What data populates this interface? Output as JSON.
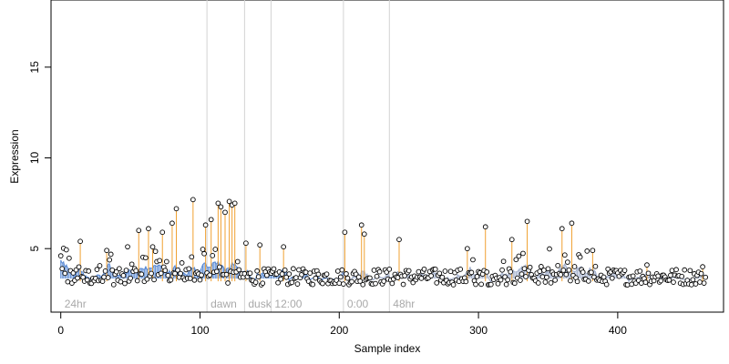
{
  "chart_data": {
    "type": "scatter",
    "xlabel": "Sample index",
    "ylabel": "Expression",
    "xlim": [
      -7,
      476
    ],
    "ylim": [
      1.5,
      18.7
    ],
    "x_ticks": [
      0,
      100,
      200,
      300,
      400
    ],
    "y_ticks": [
      5,
      10,
      15
    ],
    "baseline": 3.0,
    "colors": {
      "points_stroke": "#000000",
      "points_fill": "#ffffff",
      "stems": "#f0a030",
      "fit_line": "#4a7fd0",
      "fit_line_late": "#9aa8c8",
      "section_lines": "#d3d3d3",
      "section_labels": "#a9a9a9"
    },
    "sections": [
      {
        "label": "24hr",
        "start": 0
      },
      {
        "label": "dawn",
        "start": 105
      },
      {
        "label": "dusk",
        "start": 132
      },
      {
        "label": "12:00",
        "start": 151
      },
      {
        "label": "0:00",
        "start": 203
      },
      {
        "label": "48hr",
        "start": 236
      }
    ],
    "highlight_points": [
      {
        "x": 14,
        "y": 5.4
      },
      {
        "x": 33,
        "y": 4.9
      },
      {
        "x": 56,
        "y": 6.0
      },
      {
        "x": 63,
        "y": 6.1
      },
      {
        "x": 66,
        "y": 5.1
      },
      {
        "x": 73,
        "y": 5.9
      },
      {
        "x": 80,
        "y": 6.4
      },
      {
        "x": 83,
        "y": 7.2
      },
      {
        "x": 95,
        "y": 7.7
      },
      {
        "x": 104,
        "y": 6.3
      },
      {
        "x": 108,
        "y": 6.6
      },
      {
        "x": 113,
        "y": 7.5
      },
      {
        "x": 115,
        "y": 7.3
      },
      {
        "x": 118,
        "y": 7.0
      },
      {
        "x": 121,
        "y": 7.6
      },
      {
        "x": 123,
        "y": 7.4
      },
      {
        "x": 125,
        "y": 7.5
      },
      {
        "x": 133,
        "y": 5.3
      },
      {
        "x": 143,
        "y": 5.2
      },
      {
        "x": 160,
        "y": 5.1
      },
      {
        "x": 204,
        "y": 5.9
      },
      {
        "x": 216,
        "y": 6.3
      },
      {
        "x": 218,
        "y": 5.8
      },
      {
        "x": 243,
        "y": 5.5
      },
      {
        "x": 292,
        "y": 5.0
      },
      {
        "x": 305,
        "y": 6.2
      },
      {
        "x": 324,
        "y": 5.5
      },
      {
        "x": 335,
        "y": 6.5
      },
      {
        "x": 360,
        "y": 6.1
      },
      {
        "x": 367,
        "y": 6.4
      },
      {
        "x": 382,
        "y": 4.9
      },
      {
        "x": 421,
        "y": 4.1
      },
      {
        "x": 461,
        "y": 4.0
      }
    ]
  }
}
